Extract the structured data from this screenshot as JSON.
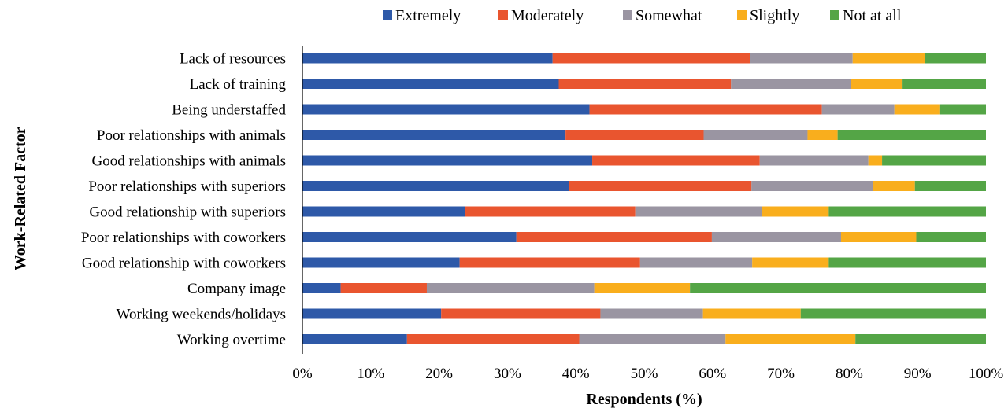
{
  "chart_data": {
    "type": "bar",
    "orientation": "horizontal",
    "stacked": true,
    "title": "",
    "xlabel": "Respondents (%)",
    "ylabel": "Work-Related Factor",
    "xlim": [
      0,
      100
    ],
    "x_ticks": [
      "0%",
      "10%",
      "20%",
      "30%",
      "40%",
      "50%",
      "60%",
      "70%",
      "80%",
      "90%",
      "100%"
    ],
    "grid": false,
    "legend_position": "top",
    "categories": [
      "Lack of resources",
      "Lack of training",
      "Being understaffed",
      "Poor relationships with animals",
      "Good relationships with animals",
      "Poor relationships with superiors",
      "Good relationship with superiors",
      "Poor relationships with coworkers",
      "Good relationship with coworkers",
      "Company image",
      "Working weekends/holidays",
      "Working overtime"
    ],
    "series": [
      {
        "name": "Extremely",
        "color": "#2e59a8",
        "values": [
          36.6,
          37.5,
          42.0,
          38.5,
          42.4,
          39.0,
          23.8,
          31.3,
          23.0,
          5.6,
          20.3,
          15.3
        ]
      },
      {
        "name": "Moderately",
        "color": "#e9552f",
        "values": [
          28.9,
          25.2,
          34.0,
          20.2,
          24.5,
          26.7,
          24.9,
          28.6,
          26.4,
          12.6,
          23.3,
          25.2
        ]
      },
      {
        "name": "Somewhat",
        "color": "#9a95a2",
        "values": [
          15.0,
          17.6,
          10.6,
          15.2,
          15.9,
          17.8,
          18.5,
          18.9,
          16.4,
          24.5,
          15.0,
          21.4
        ]
      },
      {
        "name": "Slightly",
        "color": "#f9ae1d",
        "values": [
          10.6,
          7.5,
          6.7,
          4.4,
          2.0,
          6.1,
          9.8,
          11.0,
          11.2,
          14.0,
          14.3,
          19.0
        ]
      },
      {
        "name": "Not at all",
        "color": "#54a546",
        "values": [
          8.9,
          12.2,
          6.7,
          21.7,
          15.2,
          10.4,
          23.0,
          10.2,
          23.0,
          43.3,
          27.1,
          19.1
        ]
      }
    ]
  }
}
